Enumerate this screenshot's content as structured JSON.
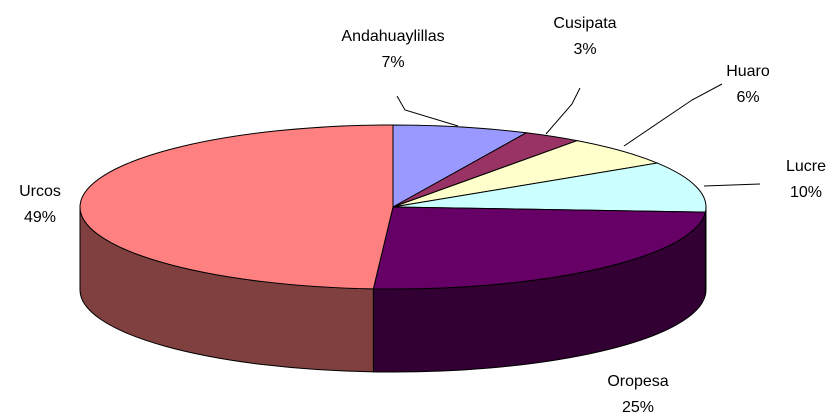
{
  "chart_data": {
    "type": "pie",
    "categories": [
      "Andahuaylillas",
      "Cusipata",
      "Huaro",
      "Lucre",
      "Oropesa",
      "Urcos"
    ],
    "values": [
      7,
      3,
      6,
      10,
      25,
      49
    ],
    "value_labels": [
      "7%",
      "3%",
      "6%",
      "10%",
      "25%",
      "49%"
    ],
    "colors": [
      "#9999ff",
      "#993366",
      "#ffffcc",
      "#ccffff",
      "#660066",
      "#ff8080"
    ],
    "side_colors": [
      "#4d4d80",
      "#4d1a33",
      "#808066",
      "#668080",
      "#330033",
      "#804040"
    ]
  }
}
